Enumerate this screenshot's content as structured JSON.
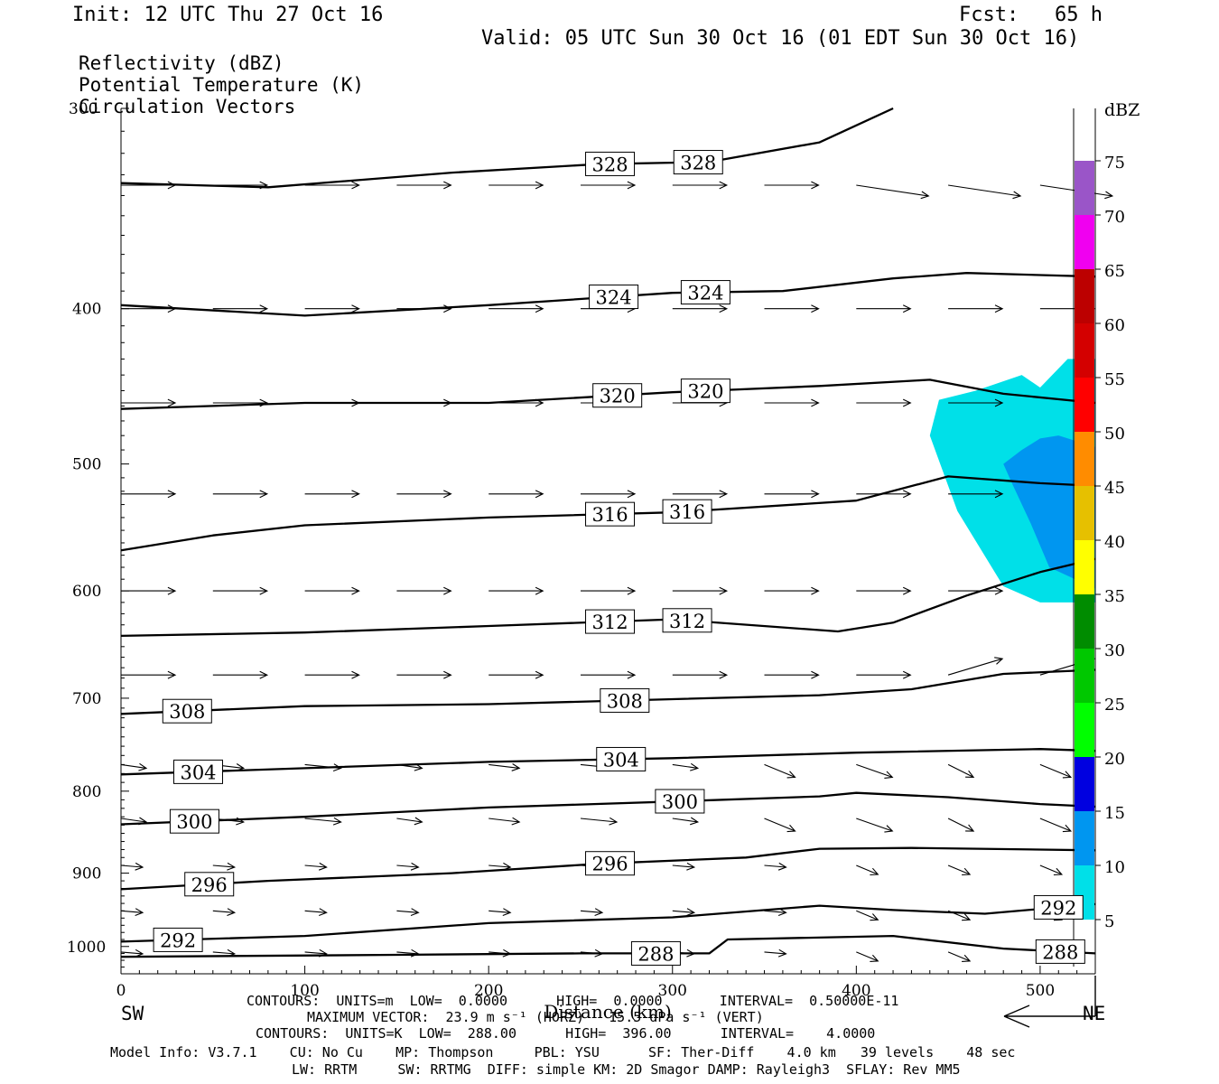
{
  "header": {
    "init": "Init: 12 UTC Thu 27 Oct 16",
    "fcst": "Fcst:   65 h",
    "valid": "Valid: 05 UTC Sun 30 Oct 16 (01 EDT Sun 30 Oct 16)",
    "field1": "Reflectivity (dBZ)",
    "field2": "Potential Temperature (K)",
    "field3": "Circulation Vectors"
  },
  "footer": {
    "contours1": "CONTOURS:  UNITS=m  LOW=  0.0000      HIGH=  0.0000       INTERVAL=  0.50000E-11",
    "maxvec": "MAXIMUM VECTOR:  23.9 m s⁻¹ (HORZ)   15.5 dPa s⁻¹ (VERT)",
    "contours2": "CONTOURS:  UNITS=K  LOW=  288.00      HIGH=  396.00      INTERVAL=    4.0000",
    "model1": "Model Info: V3.7.1    CU: No Cu    MP: Thompson     PBL: YSU      SF: Ther-Diff    4.0 km   39 levels    48 sec",
    "model2": "LW: RRTM     SW: RRTMG  DIFF: simple KM: 2D Smagor DAMP: Rayleigh3  SFLAY: Rev MM5",
    "sw": "SW",
    "ne": "NE"
  },
  "chart_data": {
    "type": "cross-section",
    "title": "Reflectivity (dBZ) / Potential Temperature (K) / Circulation Vectors",
    "xlabel": "Distance (km)",
    "ylabel": "",
    "xlim": [
      0,
      530
    ],
    "ylim": [
      1040,
      300
    ],
    "y_scale": "log-pressure",
    "x_ticks": [
      "0",
      "100",
      "200",
      "300",
      "400",
      "500"
    ],
    "y_ticks": [
      "300",
      "400",
      "500",
      "600",
      "700",
      "800",
      "900",
      "1000"
    ],
    "colorbar": {
      "label": "dBZ",
      "ticks": [
        "5",
        "10",
        "15",
        "20",
        "25",
        "30",
        "35",
        "40",
        "45",
        "50",
        "55",
        "60",
        "65",
        "70",
        "75"
      ],
      "colors": [
        "#00e0e8",
        "#0096f0",
        "#0000e0",
        "#00ff00",
        "#00c800",
        "#008c00",
        "#ffff00",
        "#e6c000",
        "#ff8c00",
        "#ff0000",
        "#d40000",
        "#bc0000",
        "#f000f0",
        "#9a55c8"
      ]
    },
    "contour_labels": [
      {
        "level": "328",
        "positions_km": [
          266,
          314
        ]
      },
      {
        "level": "324",
        "positions_km": [
          268,
          318
        ]
      },
      {
        "level": "320",
        "positions_km": [
          270,
          318
        ]
      },
      {
        "level": "316",
        "positions_km": [
          266,
          308
        ]
      },
      {
        "level": "312",
        "positions_km": [
          266,
          308
        ]
      },
      {
        "level": "308",
        "positions_km": [
          36,
          274
        ]
      },
      {
        "level": "304",
        "positions_km": [
          42,
          272
        ]
      },
      {
        "level": "300",
        "positions_km": [
          40,
          304
        ]
      },
      {
        "level": "296",
        "positions_km": [
          48,
          266
        ]
      },
      {
        "level": "292",
        "positions_km": [
          31,
          510
        ]
      },
      {
        "level": "288",
        "positions_km": [
          291,
          511
        ]
      }
    ],
    "isentropes": [
      {
        "level": 328,
        "x": [
          0,
          80,
          180,
          260,
          320,
          380,
          420
        ],
        "p": [
          334,
          336,
          329,
          325,
          324,
          315,
          300
        ]
      },
      {
        "level": 324,
        "x": [
          0,
          100,
          200,
          300,
          360,
          420,
          460,
          530
        ],
        "p": [
          398,
          404,
          398,
          391,
          390,
          383,
          380,
          382
        ]
      },
      {
        "level": 320,
        "x": [
          0,
          100,
          200,
          300,
          380,
          440,
          480,
          530
        ],
        "p": [
          462,
          458,
          458,
          451,
          447,
          443,
          452,
          458
        ]
      },
      {
        "level": 316,
        "x": [
          0,
          50,
          100,
          200,
          300,
          400,
          450,
          500,
          530
        ],
        "p": [
          566,
          554,
          546,
          540,
          536,
          527,
          509,
          514,
          516
        ]
      },
      {
        "level": 312,
        "x": [
          0,
          100,
          200,
          300,
          390,
          420,
          460,
          500,
          530
        ],
        "p": [
          640,
          637,
          631,
          625,
          636,
          628,
          604,
          584,
          573
        ]
      },
      {
        "level": 308,
        "x": [
          0,
          100,
          200,
          300,
          380,
          430,
          480,
          530
        ],
        "p": [
          716,
          708,
          706,
          701,
          697,
          691,
          676,
          672
        ]
      },
      {
        "level": 304,
        "x": [
          0,
          100,
          200,
          300,
          400,
          500,
          530
        ],
        "p": [
          781,
          774,
          767,
          763,
          757,
          753,
          755
        ]
      },
      {
        "level": 300,
        "x": [
          0,
          100,
          200,
          300,
          380,
          400,
          450,
          500,
          530
        ],
        "p": [
          839,
          830,
          819,
          812,
          806,
          802,
          807,
          815,
          818
        ]
      },
      {
        "level": 296,
        "x": [
          0,
          80,
          180,
          260,
          340,
          380,
          430,
          500,
          530
        ],
        "p": [
          921,
          910,
          900,
          888,
          880,
          869,
          868,
          870,
          871
        ]
      },
      {
        "level": 292,
        "x": [
          0,
          100,
          200,
          300,
          380,
          420,
          470,
          530
        ],
        "p": [
          993,
          985,
          967,
          959,
          943,
          949,
          954,
          941
        ]
      },
      {
        "level": 288,
        "x": [
          0,
          150,
          250,
          320,
          330,
          420,
          480,
          530
        ],
        "p": [
          1015,
          1012,
          1010,
          1010,
          990,
          985,
          1003,
          1010
        ]
      }
    ],
    "reflectivity_regions": [
      {
        "dbz": "5-10",
        "x": [
          445,
          465,
          490,
          500,
          515,
          530,
          530,
          500,
          480,
          455,
          440
        ],
        "p": [
          456,
          450,
          440,
          448,
          430,
          430,
          610,
          610,
          596,
          535,
          480
        ]
      },
      {
        "dbz": "10-15",
        "x": [
          480,
          490,
          500,
          510,
          530,
          530,
          505,
          495,
          485
        ],
        "p": [
          500,
          490,
          482,
          480,
          488,
          598,
          580,
          545,
          515
        ]
      }
    ]
  }
}
